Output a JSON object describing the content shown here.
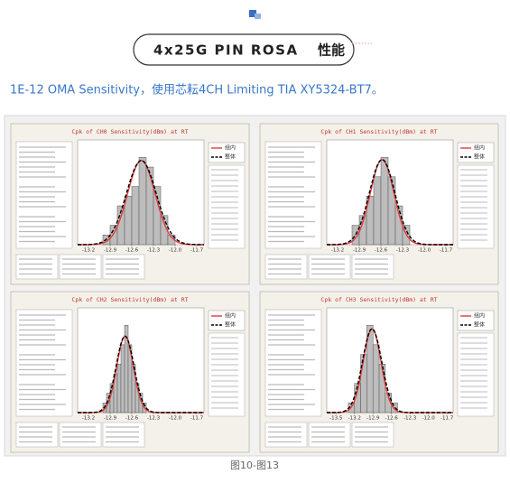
{
  "header": {
    "title": "4x25G PIN ROSA",
    "title_suffix": "性能"
  },
  "subtitle": "1E-12 OMA Sensitivity，使用芯耘4CH Limiting TIA XY5324-BT7。",
  "caption": "图10-图13",
  "chart_data": [
    {
      "type": "histogram",
      "title": "Cpk of CH0 Sensitivity(dBm) at RT",
      "bins": [
        -13.0,
        -12.9,
        -12.8,
        -12.7,
        -12.6,
        -12.5,
        -12.4,
        -12.3,
        -12.2,
        -12.1,
        -12.0
      ],
      "counts": [
        1,
        2,
        4,
        5,
        6,
        9,
        8,
        6,
        3,
        1
      ],
      "color": "#bdbdbd",
      "series": [
        {
          "name": "组内",
          "color": "#e03c3c"
        },
        {
          "name": "整体",
          "color": "#000000"
        }
      ],
      "xlim": [
        -13.35,
        -11.6
      ],
      "xticks": [
        -13.2,
        -12.9,
        -12.6,
        -12.3,
        {
          "value": -12.0,
          "label": "-12.0"
        },
        -11.7
      ]
    },
    {
      "type": "histogram",
      "title": "Cpk of CH1 Sensitivity(dBm) at RT",
      "bins": [
        -13.0,
        -12.9,
        -12.8,
        -12.7,
        -12.6,
        -12.5,
        -12.4,
        -12.3,
        -12.2
      ],
      "counts": [
        2,
        3,
        5,
        7,
        9,
        7,
        4,
        2
      ],
      "color": "#bdbdbd",
      "series": [
        {
          "name": "组内",
          "color": "#e03c3c"
        },
        {
          "name": "整体",
          "color": "#000000"
        }
      ],
      "xlim": [
        -13.35,
        -11.6
      ],
      "xticks": [
        -13.2,
        -12.9,
        -12.6,
        -12.3,
        {
          "value": -12.0,
          "label": "-12.0"
        },
        -11.7
      ]
    },
    {
      "type": "histogram",
      "title": "Cpk of CH2 Sensitivity(dBm) at RT",
      "bins": [
        -13.0,
        -12.95,
        -12.9,
        -12.85,
        -12.8,
        -12.75,
        -12.7,
        -12.65,
        -12.6,
        -12.55,
        -12.5,
        -12.45,
        -12.4
      ],
      "counts": [
        1,
        2,
        3,
        4,
        5,
        7,
        9,
        7,
        5,
        3,
        2,
        1
      ],
      "color": "#bdbdbd",
      "series": [
        {
          "name": "组内",
          "color": "#e03c3c"
        },
        {
          "name": "整体",
          "color": "#000000"
        }
      ],
      "xlim": [
        -13.35,
        -11.6
      ],
      "xticks": [
        -13.2,
        -12.9,
        -12.6,
        -12.3,
        {
          "value": -12.0,
          "label": "-12.0"
        },
        -11.7
      ]
    },
    {
      "type": "histogram",
      "title": "Cpk of CH3 Sensitivity(dBm) at RT",
      "bins": [
        -13.3,
        -13.2,
        -13.1,
        -13.0,
        -12.9,
        -12.8,
        -12.7,
        -12.6,
        -12.5
      ],
      "counts": [
        1,
        3,
        6,
        9,
        7,
        5,
        2,
        1
      ],
      "color": "#bdbdbd",
      "series": [
        {
          "name": "组内",
          "color": "#e03c3c"
        },
        {
          "name": "整体",
          "color": "#000000"
        }
      ],
      "xlim": [
        -13.65,
        -11.6
      ],
      "xticks": [
        -13.5,
        -13.2,
        -12.9,
        -12.6,
        -12.3,
        {
          "value": -12.0,
          "label": "-12.0"
        },
        -11.7
      ]
    }
  ]
}
